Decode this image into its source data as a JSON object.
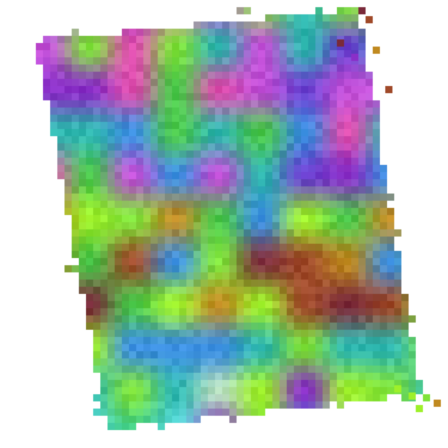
{
  "image": {
    "description_kind": "pixelated abstract color noise patch",
    "background_color": "#ffffff",
    "palette": [
      "#7fe33a",
      "#9ef02a",
      "#3fcf8a",
      "#2fb8b0",
      "#3a8ee0",
      "#6a3fd0",
      "#8a2fc8",
      "#c24fd8",
      "#e04fb0",
      "#f07aa0",
      "#a04a2a",
      "#7a2a3a",
      "#c08a20",
      "#e0a030",
      "#4ac84a",
      "#b8e0c0",
      "#5adcdc"
    ],
    "dominant_colors": {
      "top_region": "#8a2fc8",
      "center_region": "#7a2a3a",
      "lower_region": "#3fcf8a",
      "edge_accent": "#9ef02a"
    }
  }
}
